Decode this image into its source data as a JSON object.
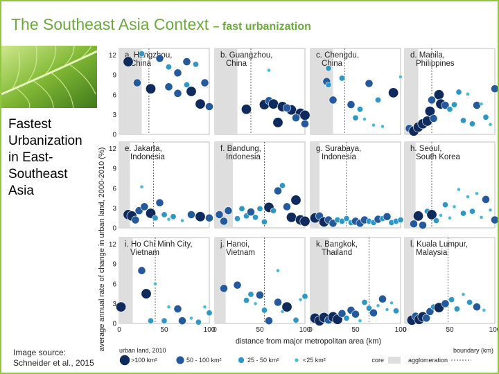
{
  "slide": {
    "title_main": "The Southeast Asia Context",
    "title_sub": "– fast urbanization",
    "side_text": [
      "Fastest",
      "Urbanization",
      "in East-",
      "Southeast",
      "Asia"
    ],
    "source_lines": [
      "Image source:",
      "Schneider et al., 2015"
    ]
  },
  "colors": {
    "accent_green": "#8dc63f",
    "title_green": "#6aaa3a",
    "dot_gt100": "#0f2a5c",
    "dot_50_100": "#24599b",
    "dot_25_50": "#2f97c6",
    "dot_lt25": "#48b9d6",
    "core_shade": "#dedede"
  },
  "chart_data": {
    "type": "scatter",
    "ylabel": "average annual rate of change in urban land, 2000-2010 (%)",
    "xlabel": "distance from major metropolitan area (km)",
    "xlim": [
      0,
      100
    ],
    "ylim": [
      0,
      13
    ],
    "x_ticks": [
      0,
      50,
      100
    ],
    "y_ticks": [
      0,
      3,
      6,
      9,
      12
    ],
    "legend": {
      "title": "urban land, 2010",
      "size_classes": [
        ">100 km²",
        "50 - 100 km²",
        "25 - 50 km²",
        "<25 km²"
      ],
      "core_label": "core",
      "agglomeration_label": "agglomeration",
      "boundary_label": "boundary (km)"
    },
    "panels": [
      {
        "label": "a. Hangzhou, China",
        "core": 25,
        "boundary": 33,
        "points": [
          [
            10,
            11,
            4
          ],
          [
            25,
            12.2,
            2
          ],
          [
            45,
            11.5,
            3
          ],
          [
            55,
            10.2,
            2
          ],
          [
            65,
            9.3,
            3
          ],
          [
            75,
            11,
            3
          ],
          [
            85,
            10.6,
            2
          ],
          [
            20,
            7.8,
            3
          ],
          [
            35,
            6.9,
            4
          ],
          [
            55,
            7.2,
            3
          ],
          [
            75,
            7.5,
            2
          ],
          [
            95,
            7.8,
            3
          ],
          [
            65,
            6.2,
            3
          ],
          [
            80,
            6.5,
            4
          ],
          [
            90,
            4.6,
            4
          ],
          [
            100,
            4.2,
            3
          ]
        ]
      },
      {
        "label": "b. Guangzhou, China",
        "core": 25,
        "boundary": 40,
        "points": [
          [
            35,
            3.8,
            4
          ],
          [
            55,
            4.5,
            4
          ],
          [
            60,
            5.1,
            3
          ],
          [
            65,
            4.6,
            4
          ],
          [
            75,
            4.2,
            4
          ],
          [
            85,
            3.7,
            4
          ],
          [
            95,
            3.2,
            4
          ],
          [
            80,
            4,
            3
          ],
          [
            90,
            2.5,
            3
          ],
          [
            70,
            1.8,
            4
          ],
          [
            100,
            2.9,
            4
          ],
          [
            100,
            1.6,
            3
          ],
          [
            60,
            9.7,
            1
          ]
        ]
      },
      {
        "label": "c. Chengdu, China",
        "core": 25,
        "boundary": 38,
        "points": [
          [
            20,
            10,
            2
          ],
          [
            18,
            8,
            3
          ],
          [
            20,
            7.5,
            2
          ],
          [
            25,
            5.2,
            3
          ],
          [
            35,
            8.5,
            2
          ],
          [
            45,
            4.5,
            3
          ],
          [
            50,
            2.5,
            2
          ],
          [
            55,
            3.8,
            2
          ],
          [
            60,
            2.3,
            1
          ],
          [
            65,
            7.7,
            3
          ],
          [
            70,
            1.4,
            1
          ],
          [
            75,
            5.2,
            2
          ],
          [
            80,
            1.2,
            1
          ],
          [
            92,
            6.3,
            4
          ],
          [
            100,
            8.7,
            1
          ]
        ]
      },
      {
        "label": "d. Manila, Philippines",
        "core": 15,
        "boundary": 30,
        "points": [
          [
            5,
            0.9,
            3
          ],
          [
            10,
            0.5,
            4
          ],
          [
            15,
            1.1,
            4
          ],
          [
            20,
            1.6,
            4
          ],
          [
            25,
            2,
            4
          ],
          [
            28,
            3.5,
            4
          ],
          [
            30,
            5.2,
            3
          ],
          [
            32,
            2.4,
            3
          ],
          [
            38,
            6,
            4
          ],
          [
            40,
            4.6,
            4
          ],
          [
            45,
            4.4,
            3
          ],
          [
            50,
            3.8,
            2
          ],
          [
            55,
            4.5,
            2
          ],
          [
            60,
            6.4,
            2
          ],
          [
            65,
            2.1,
            2
          ],
          [
            70,
            6.1,
            1
          ],
          [
            75,
            1.6,
            2
          ],
          [
            80,
            4.4,
            3
          ],
          [
            85,
            4.6,
            1
          ],
          [
            90,
            2.6,
            2
          ],
          [
            95,
            1.5,
            1
          ],
          [
            100,
            6.9,
            3
          ]
        ]
      },
      {
        "label": "e. Jakarta, Indonesia",
        "core": 12,
        "boundary": 38,
        "points": [
          [
            10,
            2,
            4
          ],
          [
            14,
            1.8,
            4
          ],
          [
            18,
            1.2,
            3
          ],
          [
            22,
            2.6,
            3
          ],
          [
            28,
            3.2,
            3
          ],
          [
            35,
            2.2,
            4
          ],
          [
            40,
            1.5,
            2
          ],
          [
            45,
            3.8,
            3
          ],
          [
            50,
            2,
            2
          ],
          [
            55,
            1.3,
            1
          ],
          [
            60,
            1.7,
            2
          ],
          [
            70,
            1.1,
            1
          ],
          [
            80,
            2,
            3
          ],
          [
            90,
            1.7,
            4
          ],
          [
            100,
            1.5,
            3
          ],
          [
            25,
            6.2,
            1
          ]
        ]
      },
      {
        "label": "f. Bandung, Indonesia",
        "core": 20,
        "boundary": 55,
        "points": [
          [
            5,
            2,
            3
          ],
          [
            10,
            1,
            3
          ],
          [
            15,
            2.6,
            3
          ],
          [
            25,
            1.4,
            2
          ],
          [
            30,
            2.9,
            2
          ],
          [
            35,
            1.8,
            2
          ],
          [
            40,
            2.4,
            3
          ],
          [
            45,
            1.6,
            2
          ],
          [
            50,
            2.9,
            2
          ],
          [
            55,
            0.9,
            2
          ],
          [
            60,
            3.1,
            4
          ],
          [
            65,
            2.6,
            2
          ],
          [
            70,
            5.6,
            3
          ],
          [
            75,
            6.4,
            2
          ],
          [
            80,
            3.2,
            3
          ],
          [
            85,
            1.6,
            4
          ],
          [
            90,
            4.2,
            4
          ],
          [
            95,
            1.2,
            4
          ],
          [
            100,
            1,
            4
          ]
        ]
      },
      {
        "label": "g. Surabaya, Indonesia",
        "core": 10,
        "boundary": 40,
        "points": [
          [
            5,
            1.5,
            4
          ],
          [
            10,
            1.8,
            3
          ],
          [
            15,
            0.9,
            4
          ],
          [
            20,
            1.2,
            3
          ],
          [
            25,
            0.7,
            3
          ],
          [
            30,
            1.2,
            2
          ],
          [
            35,
            1,
            2
          ],
          [
            40,
            1.4,
            2
          ],
          [
            45,
            0.8,
            2
          ],
          [
            50,
            1,
            3
          ],
          [
            55,
            0.7,
            3
          ],
          [
            60,
            1.2,
            3
          ],
          [
            65,
            1,
            2
          ],
          [
            70,
            0.8,
            2
          ],
          [
            75,
            1.3,
            3
          ],
          [
            80,
            1.4,
            2
          ],
          [
            85,
            1.7,
            3
          ],
          [
            90,
            0.8,
            2
          ],
          [
            95,
            1,
            2
          ],
          [
            100,
            1.2,
            2
          ]
        ]
      },
      {
        "label": "h. Seoul, South Korea",
        "core": 12,
        "boundary": 30,
        "points": [
          [
            10,
            0.6,
            3
          ],
          [
            15,
            1.8,
            4
          ],
          [
            20,
            0.4,
            3
          ],
          [
            25,
            2.5,
            2
          ],
          [
            30,
            2,
            4
          ],
          [
            35,
            1.1,
            2
          ],
          [
            40,
            1.9,
            1
          ],
          [
            45,
            3.5,
            2
          ],
          [
            50,
            1.5,
            1
          ],
          [
            55,
            3.2,
            1
          ],
          [
            60,
            5.8,
            1
          ],
          [
            65,
            2.2,
            2
          ],
          [
            70,
            4.7,
            1
          ],
          [
            75,
            2.5,
            2
          ],
          [
            80,
            5.2,
            1
          ],
          [
            85,
            1.6,
            1
          ],
          [
            90,
            4.3,
            3
          ],
          [
            95,
            2.7,
            1
          ],
          [
            100,
            1.2,
            3
          ]
        ]
      },
      {
        "label": "i. Ho Chi Minh City, Vietnam",
        "core": 15,
        "boundary": 40,
        "points": [
          [
            2,
            2.5,
            4
          ],
          [
            25,
            8,
            3
          ],
          [
            30,
            4.5,
            4
          ],
          [
            35,
            0.4,
            2
          ],
          [
            40,
            6,
            1
          ],
          [
            50,
            0.4,
            2
          ],
          [
            55,
            2.5,
            1
          ],
          [
            65,
            2.2,
            3
          ],
          [
            70,
            0.4,
            3
          ],
          [
            80,
            0.8,
            1
          ],
          [
            88,
            0.2,
            2
          ],
          [
            95,
            2.5,
            1
          ],
          [
            100,
            1.6,
            2
          ]
        ]
      },
      {
        "label": "j. Hanoi, Vietnam",
        "core": 12,
        "boundary": 55,
        "points": [
          [
            10,
            5.3,
            3
          ],
          [
            25,
            5.8,
            3
          ],
          [
            35,
            3.5,
            2
          ],
          [
            40,
            4.4,
            2
          ],
          [
            45,
            3,
            1
          ],
          [
            50,
            4.3,
            3
          ],
          [
            55,
            2,
            2
          ],
          [
            60,
            0.4,
            3
          ],
          [
            70,
            3.2,
            3
          ],
          [
            75,
            1.8,
            1
          ],
          [
            80,
            2.5,
            4
          ],
          [
            90,
            0.5,
            2
          ],
          [
            95,
            3.6,
            1
          ],
          [
            100,
            4.1,
            2
          ],
          [
            70,
            8,
            1
          ]
        ]
      },
      {
        "label": "k. Bangkok, Thailand",
        "core": 20,
        "boundary": 65,
        "points": [
          [
            5,
            0.8,
            4
          ],
          [
            10,
            0.4,
            4
          ],
          [
            15,
            0.9,
            4
          ],
          [
            20,
            0.5,
            3
          ],
          [
            25,
            1,
            4
          ],
          [
            30,
            0.6,
            4
          ],
          [
            35,
            1.5,
            3
          ],
          [
            40,
            0.8,
            2
          ],
          [
            45,
            2,
            3
          ],
          [
            50,
            1.4,
            3
          ],
          [
            55,
            0.4,
            1
          ],
          [
            60,
            3.2,
            2
          ],
          [
            65,
            2.3,
            2
          ],
          [
            70,
            1.6,
            3
          ],
          [
            75,
            2.7,
            1
          ],
          [
            80,
            3.7,
            3
          ],
          [
            85,
            2.1,
            1
          ],
          [
            90,
            3.1,
            1
          ],
          [
            95,
            1.9,
            2
          ]
        ]
      },
      {
        "label": "l. Kuala Lumpur, Malaysia",
        "core": 10,
        "boundary": 48,
        "points": [
          [
            8,
            0.5,
            4
          ],
          [
            12,
            1.1,
            3
          ],
          [
            16,
            0.6,
            4
          ],
          [
            20,
            1,
            4
          ],
          [
            24,
            0.8,
            3
          ],
          [
            28,
            1.8,
            3
          ],
          [
            32,
            2.5,
            2
          ],
          [
            38,
            2.4,
            4
          ],
          [
            45,
            3,
            3
          ],
          [
            52,
            3.6,
            2
          ],
          [
            58,
            2.2,
            2
          ],
          [
            65,
            4.4,
            1
          ],
          [
            72,
            3.2,
            2
          ],
          [
            80,
            2.5,
            3
          ],
          [
            88,
            2,
            1
          ]
        ]
      }
    ]
  }
}
